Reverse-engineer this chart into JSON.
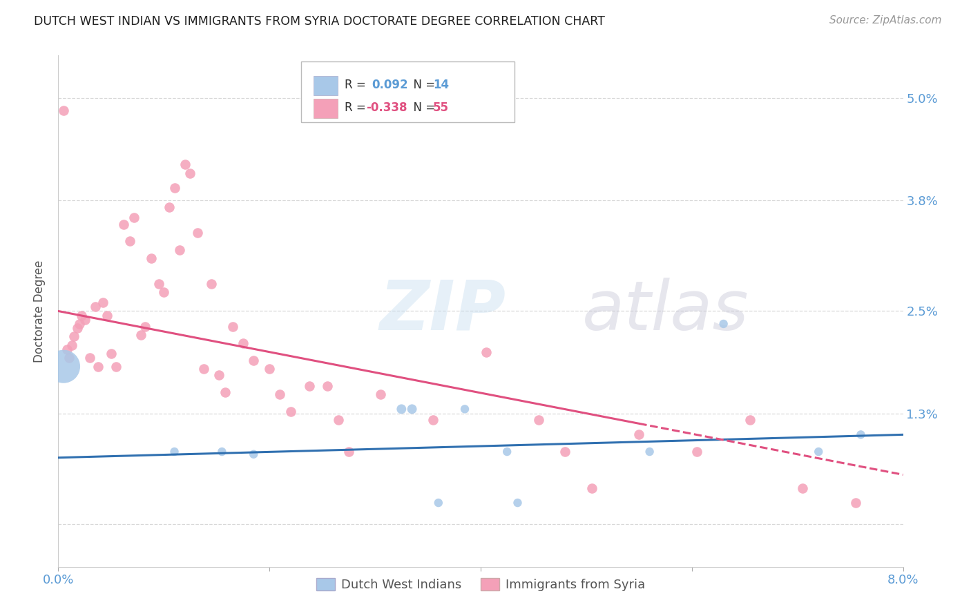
{
  "title": "DUTCH WEST INDIAN VS IMMIGRANTS FROM SYRIA DOCTORATE DEGREE CORRELATION CHART",
  "source": "Source: ZipAtlas.com",
  "ylabel": "Doctorate Degree",
  "xlim": [
    0.0,
    8.0
  ],
  "ylim": [
    -0.5,
    5.5
  ],
  "ytick_positions": [
    0.0,
    1.3,
    2.5,
    3.8,
    5.0
  ],
  "ytick_labels": [
    "",
    "1.3%",
    "2.5%",
    "3.8%",
    "5.0%"
  ],
  "grid_color": "#d8d8d8",
  "background_color": "#ffffff",
  "blue_color": "#a8c8e8",
  "pink_color": "#f4a0b8",
  "trend_blue_color": "#3070b0",
  "trend_pink_color": "#e05080",
  "blue_scatter_x": [
    0.05,
    1.1,
    1.55,
    1.85,
    3.25,
    3.35,
    3.85,
    4.25,
    5.6,
    6.3,
    7.2,
    7.6,
    3.6,
    4.35
  ],
  "blue_scatter_y": [
    1.85,
    0.85,
    0.85,
    0.82,
    1.35,
    1.35,
    1.35,
    0.85,
    0.85,
    2.35,
    0.85,
    1.05,
    0.25,
    0.25
  ],
  "blue_scatter_sizes": [
    1200,
    80,
    80,
    80,
    100,
    100,
    80,
    80,
    80,
    80,
    80,
    80,
    80,
    80
  ],
  "pink_scatter_x": [
    0.05,
    0.08,
    0.1,
    0.13,
    0.15,
    0.18,
    0.2,
    0.22,
    0.25,
    0.3,
    0.35,
    0.38,
    0.42,
    0.46,
    0.5,
    0.55,
    0.62,
    0.68,
    0.72,
    0.78,
    0.82,
    0.88,
    0.95,
    1.0,
    1.05,
    1.1,
    1.15,
    1.2,
    1.25,
    1.32,
    1.38,
    1.45,
    1.52,
    1.58,
    1.65,
    1.75,
    1.85,
    2.0,
    2.1,
    2.2,
    2.38,
    2.55,
    2.65,
    2.75,
    3.05,
    3.55,
    4.05,
    4.55,
    5.05,
    6.05,
    6.55,
    7.05,
    7.55,
    4.8,
    5.5
  ],
  "pink_scatter_y": [
    4.85,
    2.05,
    1.95,
    2.1,
    2.2,
    2.3,
    2.35,
    2.45,
    2.4,
    1.95,
    2.55,
    1.85,
    2.6,
    2.45,
    2.0,
    1.85,
    3.52,
    3.32,
    3.6,
    2.22,
    2.32,
    3.12,
    2.82,
    2.72,
    3.72,
    3.95,
    3.22,
    4.22,
    4.12,
    3.42,
    1.82,
    2.82,
    1.75,
    1.55,
    2.32,
    2.12,
    1.92,
    1.82,
    1.52,
    1.32,
    1.62,
    1.62,
    1.22,
    0.85,
    1.52,
    1.22,
    2.02,
    1.22,
    0.42,
    0.85,
    1.22,
    0.42,
    0.25,
    0.85,
    1.05
  ],
  "trend_blue_x0": 0.0,
  "trend_blue_y0": 0.78,
  "trend_blue_x1": 8.0,
  "trend_blue_y1": 1.05,
  "trend_pink_x0": 0.0,
  "trend_pink_y0": 2.5,
  "trend_pink_x1": 8.0,
  "trend_pink_y1": 0.58,
  "trend_pink_solid_end": 5.5,
  "legend_blue_r": "0.092",
  "legend_blue_n": "14",
  "legend_pink_r": "-0.338",
  "legend_pink_n": "55"
}
